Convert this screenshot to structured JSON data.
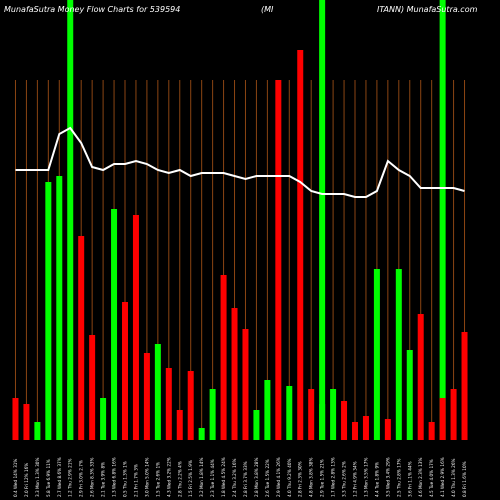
{
  "chart_data": {
    "type": "bar",
    "title_left": "MunafaSutra  Money Flow  Charts for 539594",
    "title_right": "(MI",
    "title_far_right": "ITANN) MunafaSutra.com",
    "colors": {
      "background": "#000000",
      "up": "#00ff00",
      "down": "#ff0000",
      "grid": "#8b4513",
      "line": "#ffffff",
      "highlight": "#00ff00"
    },
    "categories": [
      "0.4 Wed 14% 31%",
      "2.0 Fri 12% 16%",
      "3.3 Mon 1.3% 30%",
      "5.8 Tue 6.9% 11%",
      "2.7 Wed 8.6% 37%",
      "1.2 Thu 2.9% 21%",
      "2.9 Fri 3.0% 2.7%",
      "2.6 Mon 8.3% 33%",
      "2.1 Tue 3.9% 8%",
      "1.3 Wed 6.8% 16%",
      "0.5 Thu 1.3% 1%",
      "2.1 Fri 1.7% 3%",
      "3.0 Mon 5.0% 14%",
      "1.5 Tue 2.6% 1%",
      "4.3 Wed 3.2% 22%",
      "2.8 Thu 2.2% 4%",
      "1.5 Fri 2.5% 1.9%",
      "3.2 Mon 1.8% 14%",
      "2.3 Tue 1.1% 44%",
      "1.8 Wed 4.5% 24%",
      "2.4 Thu 3.2% 16%",
      "2.8 Fri 3.7% 33%",
      "2.8 Mon 3.8% 28%",
      "2.6 Tue 1.5% 22%",
      "2.9 Wed 4.1% 26%",
      "4.0 Thu 9.2% 40%",
      "2.8 Fri 2.3% 30%",
      "4.8 Mon 3.8% 38%",
      "2.9 Tue 1.5% 21%",
      "1.7 Wed 2.8% 13%",
      "3.3 Thu 2.6% 2%",
      "1.2 Fri 4.9% 34%",
      "1.3 Mon 3.5% 17%",
      "4.4 Tue 1.8% 9%",
      "3.5 Wed 3.4% 29%",
      "2.5 Thu 2.8% 17%",
      "3.6 Fri 1.1% 44%",
      "4.6 Mon 2.3% 13%",
      "4.5 Tue 4.0% 17%",
      "4.1 Wed 2.9% 16%",
      "4.0 Thu 1.3% 26%",
      "0.8 Fri 1.6% 10%"
    ],
    "series": [
      {
        "colors": [
          "down",
          "down",
          "up",
          "up",
          "up",
          "up",
          "down",
          "down",
          "up",
          "up",
          "down",
          "down",
          "down",
          "up",
          "down",
          "down",
          "down",
          "up",
          "up",
          "down",
          "down",
          "down",
          "up",
          "up",
          "down",
          "up",
          "down",
          "down",
          "up",
          "up",
          "down",
          "down",
          "down",
          "up",
          "down",
          "up",
          "up",
          "down",
          "down",
          "down",
          "down",
          "down"
        ],
        "values": [
          14,
          12,
          6,
          86,
          88,
          20,
          68,
          35,
          14,
          77,
          46,
          75,
          29,
          32,
          24,
          10,
          23,
          4,
          17,
          55,
          44,
          37,
          10,
          20,
          120,
          18,
          130,
          17,
          12,
          17,
          13,
          6,
          8,
          57,
          7,
          57,
          30,
          42,
          6,
          14,
          17,
          36
        ]
      }
    ],
    "line": [
      90,
      90,
      90,
      90,
      102,
      104,
      99,
      91,
      90,
      92,
      92,
      93,
      92,
      90,
      89,
      90,
      88,
      89,
      89,
      89,
      88,
      87,
      88,
      88,
      88,
      88,
      86,
      83,
      82,
      82,
      82,
      81,
      81,
      83,
      93,
      90,
      88,
      84,
      84,
      84,
      84,
      83
    ],
    "highlight_columns": [
      5,
      28,
      39
    ],
    "ylim": [
      0,
      140
    ],
    "grid": true
  }
}
